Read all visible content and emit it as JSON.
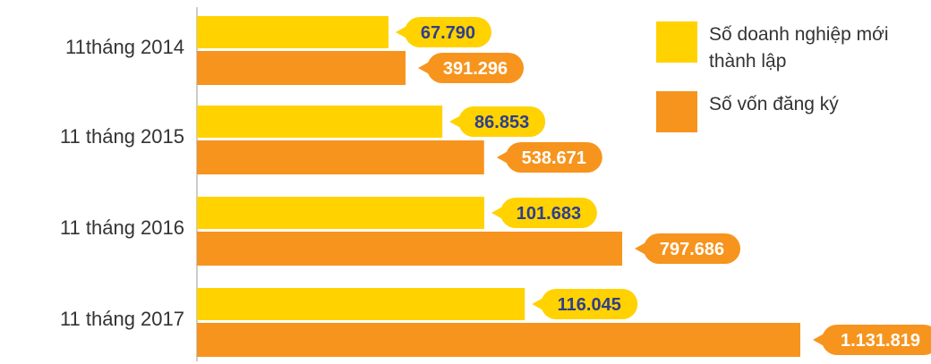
{
  "chart_data": {
    "type": "bar",
    "orientation": "horizontal",
    "categories": [
      "11tháng 2014",
      "11 tháng 2015",
      "11 tháng 2016",
      "11 tháng 2017"
    ],
    "series": [
      {
        "name": "Số doanh nghiệp mới thành lập",
        "values": [
          67790,
          86853,
          101683,
          116045
        ],
        "labels": [
          "67.790",
          "86.853",
          "101.683",
          "116.045"
        ],
        "color": "#FFD200",
        "label_text_color": "#2E3E8C"
      },
      {
        "name": "Số vốn đăng ký",
        "values": [
          391296,
          538671,
          797686,
          1131819
        ],
        "labels": [
          "391.296",
          "538.671",
          "797.686",
          "1.131.819"
        ],
        "color": "#F7941D",
        "label_text_color": "#FFFFFF"
      }
    ],
    "legend": {
      "placement": "top-right",
      "items": [
        {
          "lines": [
            "Số doanh nghiệp mới",
            "thành lập"
          ],
          "color": "#FFD200"
        },
        {
          "lines": [
            "Số vốn đăng ký"
          ],
          "color": "#F7941D"
        }
      ]
    },
    "axis_line_color": "#BBBBBB",
    "grid": false,
    "title": "",
    "xlabel": "",
    "ylabel": ""
  }
}
